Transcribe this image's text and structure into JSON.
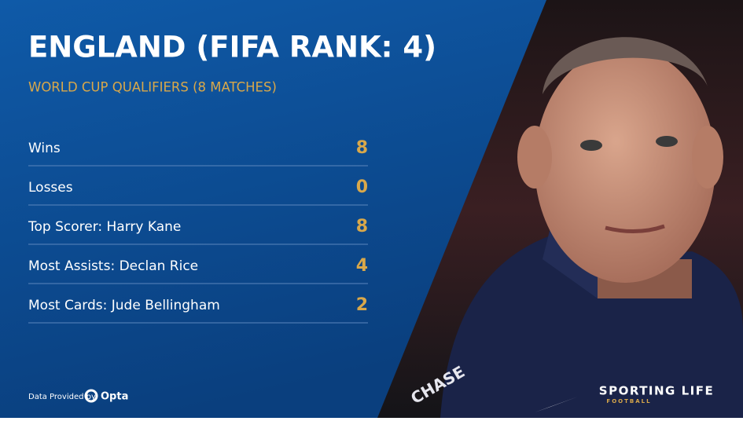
{
  "header": {
    "title": "ENGLAND (FIFA RANK: 4)",
    "subtitle": "WORLD CUP QUALIFIERS (8 MATCHES)"
  },
  "table": {
    "rows": [
      [
        "Wins",
        "8"
      ],
      [
        "Losses",
        "0"
      ],
      [
        "Top Scorer: Harry Kane",
        "8"
      ],
      [
        "Most Assists: Declan Rice",
        "4"
      ],
      [
        "Most Cards: Jude Bellingham",
        "2"
      ]
    ]
  },
  "footer": {
    "credit": "Data Provided by",
    "provider": "Opta",
    "brand": "SPORTING LIFE",
    "brand_sub": "FOOTBALL"
  },
  "photo": {
    "sponsor": "CHASE"
  }
}
